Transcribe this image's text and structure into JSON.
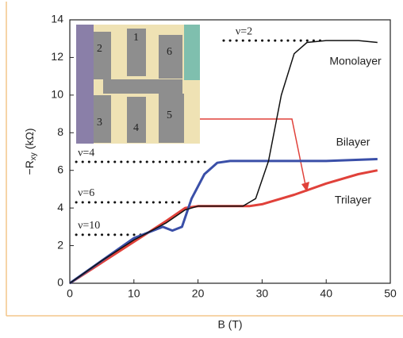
{
  "chart_data": {
    "type": "line",
    "xlabel": "B (T)",
    "ylabel": [
      "−R",
      "xy",
      " (kΩ)"
    ],
    "xlim": [
      0,
      50
    ],
    "xticks": [
      0,
      10,
      20,
      30,
      40,
      50
    ],
    "ylim": [
      0,
      14
    ],
    "yticks": [
      0,
      2,
      4,
      6,
      8,
      10,
      12,
      14
    ],
    "series": [
      {
        "name": "Monolayer",
        "color": "#111111",
        "x": [
          0,
          5,
          10,
          15,
          18,
          20,
          25,
          27,
          29,
          31,
          33,
          35,
          37,
          40,
          45,
          48
        ],
        "values": [
          0,
          1.2,
          2.3,
          3.2,
          3.9,
          4.1,
          4.1,
          4.1,
          4.5,
          6.5,
          10,
          12.2,
          12.8,
          12.9,
          12.9,
          12.8
        ]
      },
      {
        "name": "Bilayer",
        "color": "#3a4fa8",
        "x": [
          0,
          5,
          10,
          13,
          14.5,
          16,
          17.5,
          19,
          21,
          23,
          25,
          30,
          40,
          48
        ],
        "values": [
          0,
          1.2,
          2.4,
          2.8,
          3.0,
          2.8,
          3.0,
          4.5,
          5.8,
          6.4,
          6.5,
          6.5,
          6.5,
          6.6
        ]
      },
      {
        "name": "Trilayer",
        "color": "#e0413a",
        "x": [
          0,
          5,
          10,
          15,
          18,
          20,
          25,
          28,
          30,
          35,
          40,
          45,
          48
        ],
        "values": [
          0,
          1.1,
          2.2,
          3.3,
          4.0,
          4.1,
          4.1,
          4.1,
          4.2,
          4.7,
          5.3,
          5.8,
          6.0
        ]
      }
    ],
    "annotations": [
      {
        "text": "ν=2",
        "y": 12.9,
        "x0": 24,
        "x1": 40
      },
      {
        "text": "ν=4",
        "y": 6.45,
        "x0": 1,
        "x1": 22
      },
      {
        "text": "ν=6",
        "y": 4.3,
        "x0": 1,
        "x1": 18
      },
      {
        "text": "ν=10",
        "y": 2.58,
        "x0": 1,
        "x1": 12
      }
    ],
    "inset_labels": [
      "1",
      "2",
      "3",
      "4",
      "5",
      "6"
    ]
  }
}
